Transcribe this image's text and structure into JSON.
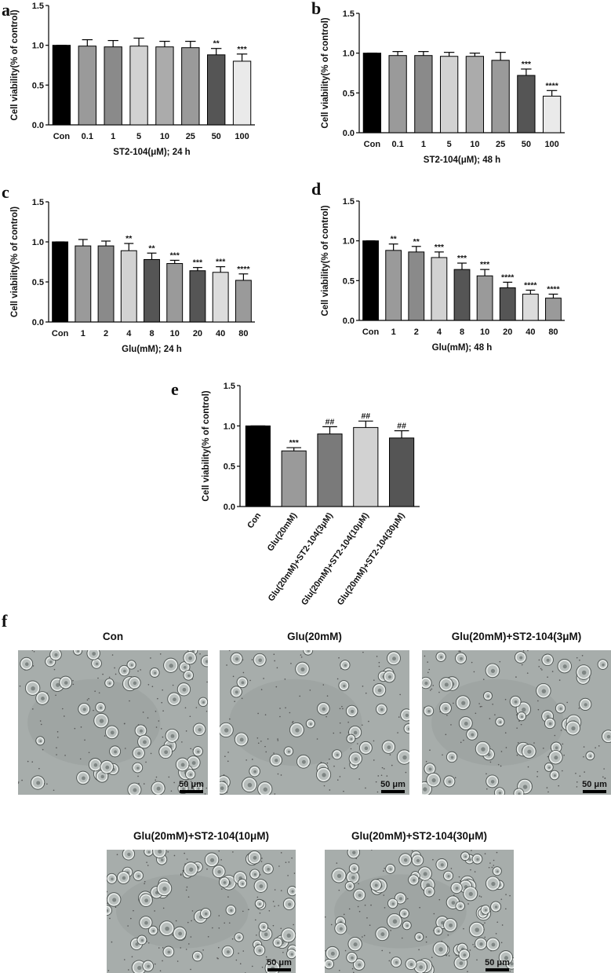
{
  "chart_data": [
    {
      "type": "bar",
      "label": "a",
      "categories": [
        "Con",
        "0.1",
        "1",
        "5",
        "10",
        "25",
        "50",
        "100"
      ],
      "values": [
        1.0,
        0.99,
        0.98,
        0.99,
        0.98,
        0.97,
        0.88,
        0.8
      ],
      "errors": [
        0,
        0.08,
        0.08,
        0.1,
        0.07,
        0.08,
        0.08,
        0.09
      ],
      "annotations": [
        null,
        null,
        null,
        null,
        null,
        null,
        "**",
        "***"
      ],
      "colors": [
        "#000000",
        "#9a9a9a",
        "#8a8a8a",
        "#d2d2d2",
        "#ababab",
        "#9a9a9a",
        "#555555",
        "#eaeaea"
      ],
      "xlabel": "ST2-104(μM); 24 h",
      "ylabel": "Cell viability(% of control)",
      "ylim": [
        0,
        1.5
      ],
      "yticks": [
        {
          "value": 0,
          "label": "0.0"
        },
        0.5,
        {
          "value": 1,
          "label": "1.0"
        },
        1.5
      ]
    },
    {
      "type": "bar",
      "label": "b",
      "categories": [
        "Con",
        "0.1",
        "1",
        "5",
        "10",
        "25",
        "50",
        "100"
      ],
      "values": [
        1.0,
        0.97,
        0.97,
        0.96,
        0.96,
        0.91,
        0.72,
        0.46
      ],
      "errors": [
        0,
        0.05,
        0.05,
        0.05,
        0.04,
        0.1,
        0.08,
        0.07
      ],
      "annotations": [
        null,
        null,
        null,
        null,
        null,
        null,
        "***",
        "****"
      ],
      "colors": [
        "#000000",
        "#9a9a9a",
        "#8a8a8a",
        "#d2d2d2",
        "#ababab",
        "#9a9a9a",
        "#555555",
        "#eaeaea"
      ],
      "xlabel": "ST2-104(μM); 48 h",
      "ylabel": "Cell viability(% of control)",
      "ylim": [
        0,
        1.5
      ],
      "yticks": [
        {
          "value": 0,
          "label": "0.0"
        },
        0.5,
        {
          "value": 1,
          "label": "1.0"
        },
        1.5
      ]
    },
    {
      "type": "bar",
      "label": "c",
      "categories": [
        "Con",
        "1",
        "2",
        "4",
        "8",
        "10",
        "20",
        "40",
        "80"
      ],
      "values": [
        1.0,
        0.95,
        0.95,
        0.89,
        0.78,
        0.73,
        0.64,
        0.62,
        0.52
      ],
      "errors": [
        0,
        0.08,
        0.06,
        0.09,
        0.08,
        0.04,
        0.04,
        0.07,
        0.08
      ],
      "annotations": [
        null,
        null,
        null,
        "**",
        "**",
        "***",
        "***",
        "***",
        "****"
      ],
      "colors": [
        "#000000",
        "#9a9a9a",
        "#8a8a8a",
        "#d2d2d2",
        "#555555",
        "#9a9a9a",
        "#555555",
        "#dcdcdc",
        "#9a9a9a"
      ],
      "xlabel": "Glu(mM); 24 h",
      "ylabel": "Cell viability(% of control)",
      "ylim": [
        0,
        1.5
      ],
      "yticks": [
        {
          "value": 0,
          "label": "0.0"
        },
        0.5,
        {
          "value": 1,
          "label": "1.0"
        },
        1.5
      ]
    },
    {
      "type": "bar",
      "label": "d",
      "categories": [
        "Con",
        "1",
        "2",
        "4",
        "8",
        "10",
        "20",
        "40",
        "80"
      ],
      "values": [
        1.0,
        0.88,
        0.86,
        0.79,
        0.64,
        0.56,
        0.41,
        0.33,
        0.28
      ],
      "errors": [
        0,
        0.08,
        0.07,
        0.07,
        0.08,
        0.08,
        0.07,
        0.05,
        0.05
      ],
      "annotations": [
        null,
        "**",
        "**",
        "***",
        "***",
        "***",
        "****",
        "****",
        "****"
      ],
      "colors": [
        "#000000",
        "#9a9a9a",
        "#8a8a8a",
        "#d2d2d2",
        "#555555",
        "#9a9a9a",
        "#555555",
        "#dcdcdc",
        "#9a9a9a"
      ],
      "xlabel": "Glu(mM); 48 h",
      "ylabel": "Cell viability(% of control)",
      "ylim": [
        0,
        1.5
      ],
      "yticks": [
        {
          "value": 0,
          "label": "0.0"
        },
        0.5,
        {
          "value": 1,
          "label": "1.0"
        },
        1.5
      ]
    },
    {
      "type": "bar",
      "label": "e",
      "categories": [
        "Con",
        "Glu(20mM)",
        "Glu(20mM)+ST2-104(3μM)",
        "Glu(20mM)+ST2-104(10μM)",
        "Glu(20mM)+ST2-104(30μM)"
      ],
      "values": [
        1.0,
        0.69,
        0.9,
        0.98,
        0.85
      ],
      "errors": [
        0,
        0.04,
        0.09,
        0.08,
        0.09
      ],
      "annotations": [
        null,
        "***",
        "##",
        "##",
        "##"
      ],
      "colors": [
        "#000000",
        "#9a9a9a",
        "#7a7a7a",
        "#d2d2d2",
        "#555555"
      ],
      "ylabel": "Cell viability(% of control)",
      "ylim": [
        0,
        1.5
      ],
      "yticks": [
        {
          "value": 0,
          "label": "0.0"
        },
        0.5,
        {
          "value": 1,
          "label": "1.0"
        },
        1.5
      ]
    }
  ],
  "micrographs": {
    "label": "f",
    "panels": [
      {
        "title": "Con",
        "scale_bar": "50 μm"
      },
      {
        "title": "Glu(20mM)",
        "scale_bar": "50 μm"
      },
      {
        "title": "Glu(20mM)+ST2-104(3μM)",
        "scale_bar": "50 μm"
      },
      {
        "title": "Glu(20mM)+ST2-104(10μM)",
        "scale_bar": "50 μm"
      },
      {
        "title": "Glu(20mM)+ST2-104(30μM)",
        "scale_bar": "50 μm"
      }
    ]
  }
}
